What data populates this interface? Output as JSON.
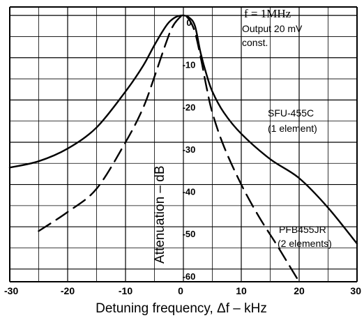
{
  "chart_data": {
    "type": "line",
    "title": "",
    "xlabel": "Detuning frequency, Δf – kHz",
    "ylabel": "Attenuation – dB",
    "xlim": [
      -30,
      30
    ],
    "ylim": [
      -63,
      2
    ],
    "x_ticks": [
      "-30",
      "-20",
      "-10",
      "0",
      "10",
      "20",
      "30"
    ],
    "y_ticks": [
      "0",
      "-10",
      "-20",
      "-30",
      "-40",
      "-50",
      "-60"
    ],
    "grid": true,
    "annotations": {
      "condition_freq": "f = 1MHz",
      "condition_output_1": "Output 20 mV",
      "condition_output_2": "const."
    },
    "series": [
      {
        "name": "SFU-455C",
        "note": "(1 element)",
        "style": "solid",
        "x": [
          -30,
          -25,
          -20,
          -15,
          -10,
          -7,
          -5,
          -3,
          -2,
          -1,
          0,
          1,
          2,
          3,
          4,
          5,
          7,
          10,
          15,
          20,
          25,
          30
        ],
        "y": [
          -36,
          -34.5,
          -31.5,
          -26.5,
          -18,
          -12,
          -7,
          -2.5,
          -1,
          -0.2,
          0,
          -0.5,
          -2.5,
          -9,
          -14,
          -18,
          -23,
          -28,
          -34,
          -38.5,
          -45.5,
          -54
        ]
      },
      {
        "name": "PFB455JR",
        "note": "(2 elements)",
        "style": "dashed",
        "x": [
          -25,
          -20,
          -15,
          -10,
          -7,
          -5,
          -3,
          -2,
          -1,
          0,
          1,
          2,
          3,
          4,
          5,
          7,
          10,
          13,
          16,
          18,
          20
        ],
        "y": [
          -51,
          -46.5,
          -41,
          -30,
          -22,
          -14.5,
          -6.5,
          -3,
          -1,
          0,
          -1,
          -4,
          -10,
          -17,
          -23,
          -31,
          -40,
          -47.5,
          -54,
          -58.5,
          -63
        ]
      }
    ]
  }
}
